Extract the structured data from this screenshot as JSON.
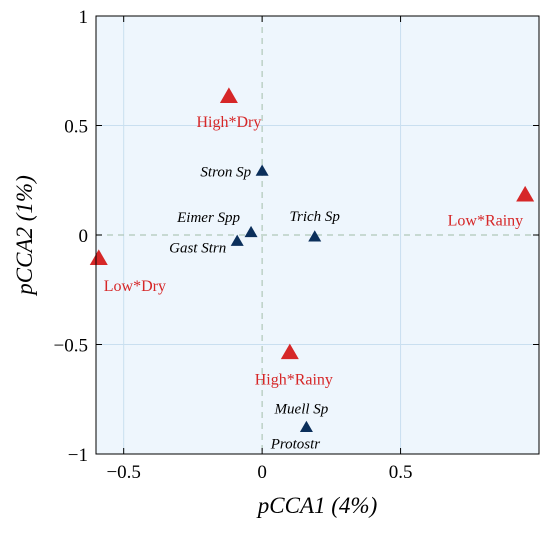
{
  "chart_data": {
    "type": "scatter",
    "xlabel": "pCCA1 (4%)",
    "ylabel": "pCCA2 (1%)",
    "xlim": [
      -0.6,
      1.0
    ],
    "ylim": [
      -1.0,
      1.0
    ],
    "xticks": [
      -0.5,
      0,
      0.5
    ],
    "xtick_labels": [
      "−0.5",
      "0",
      "0.5"
    ],
    "yticks": [
      -1,
      -0.5,
      0,
      0.5,
      1
    ],
    "ytick_labels": [
      "−1",
      "−0.5",
      "0",
      "0.5",
      "1"
    ],
    "grid": true,
    "reference_lines": {
      "x": 0,
      "y": 0
    },
    "colors": {
      "background": "#eef6fd",
      "grid": "#c9dff0",
      "reference": "#b0c8b8",
      "environment": "#d62728",
      "species": "#0b2f5b"
    },
    "series": [
      {
        "group": "environment",
        "marker": "triangle",
        "points": [
          {
            "label": "High*Dry",
            "x": -0.12,
            "y": 0.63
          },
          {
            "label": "Low*Rainy",
            "x": 0.95,
            "y": 0.18
          },
          {
            "label": "Low*Dry",
            "x": -0.59,
            "y": -0.11
          },
          {
            "label": "High*Rainy",
            "x": 0.1,
            "y": -0.54
          }
        ]
      },
      {
        "group": "species",
        "marker": "triangle",
        "points": [
          {
            "label": "Stron Sp",
            "x": 0.0,
            "y": 0.29
          },
          {
            "label": "Eimer Spp",
            "x": -0.04,
            "y": 0.01
          },
          {
            "label": "Gast Strn",
            "x": -0.09,
            "y": -0.03
          },
          {
            "label": "Trich Sp",
            "x": 0.19,
            "y": -0.01
          },
          {
            "label": "Muell Sp",
            "x": 0.16,
            "y": -0.88
          },
          {
            "label": "Protostr",
            "x": 0.16,
            "y": -0.88
          }
        ]
      }
    ]
  }
}
